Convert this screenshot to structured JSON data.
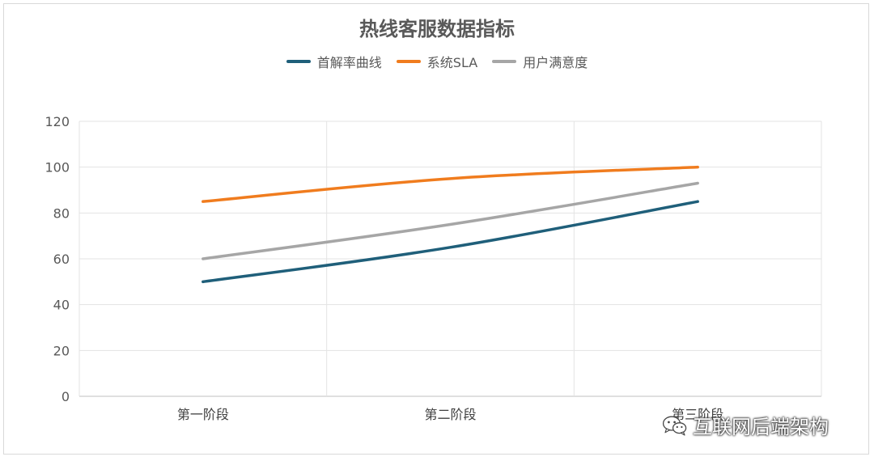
{
  "chart_data": {
    "type": "line",
    "title": "热线客服数据指标",
    "categories": [
      "第一阶段",
      "第二阶段",
      "第三阶段"
    ],
    "series": [
      {
        "name": "首解率曲线",
        "color": "#1f5f7a",
        "values": [
          50,
          65,
          85
        ]
      },
      {
        "name": "系统SLA",
        "color": "#f07c1e",
        "values": [
          85,
          95,
          100
        ]
      },
      {
        "name": "用户满意度",
        "color": "#a6a6a6",
        "values": [
          60,
          75,
          93
        ]
      }
    ],
    "ylim": [
      0,
      120
    ],
    "yticks": [
      0,
      20,
      40,
      60,
      80,
      100,
      120
    ],
    "grid": true,
    "legend": "top",
    "xlabel": "",
    "ylabel": ""
  },
  "watermark": {
    "text": "互联网后端架构",
    "icon": "wechat-icon"
  }
}
